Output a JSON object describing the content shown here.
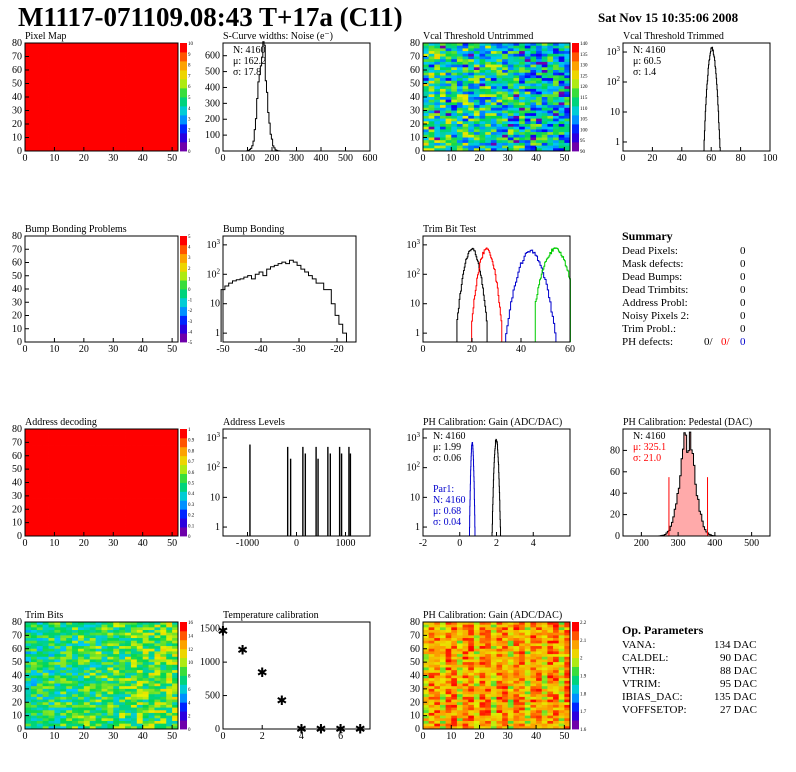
{
  "header": {
    "title": "M1117-071109.08:43 T+17a (C11)",
    "date": "Sat Nov 15 10:35:06 2008"
  },
  "colors": {
    "red": "#ff0000",
    "blue": "#0000cc",
    "green": "#00cc00",
    "pink": "#ffaaaa"
  },
  "chart_data": [
    {
      "id": "pixel-map",
      "type": "heatmap",
      "title": "Pixel Map",
      "xlim": [
        0,
        52
      ],
      "ylim": [
        0,
        80
      ],
      "xticks": [
        0,
        10,
        20,
        30,
        40,
        50
      ],
      "yticks": [
        0,
        10,
        20,
        30,
        40,
        50,
        60,
        70,
        80
      ],
      "fill": "uniform-red",
      "zlim": [
        0,
        10
      ],
      "zticks": [
        0,
        1,
        2,
        3,
        4,
        5,
        6,
        7,
        8,
        9,
        10
      ]
    },
    {
      "id": "scurve-noise",
      "type": "histogram",
      "title": "S-Curve widths: Noise (e⁻)",
      "xlim": [
        0,
        600
      ],
      "ylim": [
        0,
        680
      ],
      "xticks": [
        0,
        100,
        200,
        300,
        400,
        500,
        600
      ],
      "yticks": [
        0,
        100,
        200,
        300,
        400,
        500,
        600
      ],
      "stats": [
        "N: 4160",
        "μ: 162.2",
        "σ: 17.8"
      ],
      "series": [
        {
          "color": "#000000",
          "mean": 162.2,
          "sigma": 17.8,
          "peak": 640,
          "range": [
            100,
            300
          ]
        }
      ]
    },
    {
      "id": "vcal-untrimmed",
      "type": "heatmap",
      "title": "Vcal Threshold Untrimmed",
      "xlim": [
        0,
        52
      ],
      "ylim": [
        0,
        80
      ],
      "xticks": [
        0,
        10,
        20,
        30,
        40,
        50
      ],
      "yticks": [
        0,
        10,
        20,
        30,
        40,
        50,
        60,
        70,
        80
      ],
      "fill": "noise-mixed",
      "zlim": [
        90,
        140
      ],
      "zticks": [
        90,
        95,
        100,
        105,
        110,
        115,
        120,
        125,
        130,
        135,
        140
      ]
    },
    {
      "id": "vcal-trimmed",
      "type": "histogram",
      "title": "Vcal Threshold Trimmed",
      "xlim": [
        0,
        100
      ],
      "log": true,
      "ylim": [
        0.5,
        2000
      ],
      "xticks": [
        0,
        20,
        40,
        60,
        80,
        100
      ],
      "yticks": [
        1,
        10,
        100,
        1000
      ],
      "stats": [
        "N: 4160",
        "μ: 60.5",
        "σ:  1.4"
      ],
      "series": [
        {
          "color": "#000000",
          "mean": 60.5,
          "sigma": 1.4,
          "peak": 1300,
          "range": [
            55,
            66
          ]
        }
      ]
    },
    {
      "id": "bump-problems",
      "type": "heatmap",
      "title": "Bump Bonding Problems",
      "xlim": [
        0,
        52
      ],
      "ylim": [
        0,
        80
      ],
      "xticks": [
        0,
        10,
        20,
        30,
        40,
        50
      ],
      "yticks": [
        0,
        10,
        20,
        30,
        40,
        50,
        60,
        70,
        80
      ],
      "fill": "empty",
      "zlim": [
        -5,
        5
      ],
      "zticks": [
        -5,
        -4,
        -3,
        -2,
        -1,
        0,
        1,
        2,
        3,
        4,
        5
      ]
    },
    {
      "id": "bump-bonding",
      "type": "histogram",
      "title": "Bump Bonding",
      "xlim": [
        -50,
        -15
      ],
      "log": true,
      "ylim": [
        0.5,
        2000
      ],
      "xticks": [
        -50,
        -40,
        -30,
        -20
      ],
      "yticks": [
        1,
        10,
        100,
        1000
      ],
      "series": [
        {
          "color": "#000000",
          "points": [
            [
              -50,
              30
            ],
            [
              -49,
              40
            ],
            [
              -48,
              50
            ],
            [
              -47,
              60
            ],
            [
              -46,
              65
            ],
            [
              -45,
              70
            ],
            [
              -44,
              80
            ],
            [
              -43,
              90
            ],
            [
              -42,
              70
            ],
            [
              -41,
              100
            ],
            [
              -40,
              120
            ],
            [
              -39,
              90
            ],
            [
              -38,
              150
            ],
            [
              -37,
              180
            ],
            [
              -36,
              200
            ],
            [
              -35,
              230
            ],
            [
              -34,
              260
            ],
            [
              -33,
              230
            ],
            [
              -32,
              300
            ],
            [
              -31,
              260
            ],
            [
              -30,
              200
            ],
            [
              -29,
              150
            ],
            [
              -28,
              120
            ],
            [
              -27,
              90
            ],
            [
              -26,
              70
            ],
            [
              -25,
              50
            ],
            [
              -24,
              50
            ],
            [
              -23,
              30
            ],
            [
              -22,
              30
            ],
            [
              -21,
              10
            ],
            [
              -20,
              4
            ],
            [
              -19,
              2
            ],
            [
              -18,
              1
            ]
          ]
        }
      ]
    },
    {
      "id": "trim-bit-test",
      "type": "histogram",
      "title": "Trim Bit Test",
      "xlim": [
        0,
        60
      ],
      "log": true,
      "ylim": [
        0.5,
        2000
      ],
      "xticks": [
        0,
        20,
        40,
        60
      ],
      "yticks": [
        1,
        10,
        100,
        1000
      ],
      "series": [
        {
          "color": "#000000",
          "mean": 20,
          "sigma": 1.8,
          "peak": 700,
          "range": [
            14,
            26
          ]
        },
        {
          "color": "#ff0000",
          "mean": 26,
          "sigma": 1.8,
          "peak": 700,
          "range": [
            20,
            32
          ]
        },
        {
          "color": "#0000cc",
          "mean": 44,
          "sigma": 2.8,
          "peak": 600,
          "range": [
            34,
            54
          ]
        },
        {
          "color": "#00cc00",
          "mean": 54,
          "sigma": 2.8,
          "peak": 700,
          "range": [
            46,
            60
          ]
        }
      ]
    },
    {
      "id": "address-decoding",
      "type": "heatmap",
      "title": "Address decoding",
      "xlim": [
        0,
        52
      ],
      "ylim": [
        0,
        80
      ],
      "xticks": [
        0,
        10,
        20,
        30,
        40,
        50
      ],
      "yticks": [
        0,
        10,
        20,
        30,
        40,
        50,
        60,
        70,
        80
      ],
      "fill": "uniform-red",
      "zlim": [
        0,
        1
      ],
      "zticks": [
        0,
        0.1,
        0.2,
        0.3,
        0.4,
        0.5,
        0.6,
        0.7,
        0.8,
        0.9,
        1
      ]
    },
    {
      "id": "address-levels",
      "type": "histogram",
      "title": "Address Levels",
      "xlim": [
        -1500,
        1500
      ],
      "log": true,
      "ylim": [
        0.5,
        2000
      ],
      "xticks": [
        -1000,
        0,
        1000
      ],
      "yticks": [
        1,
        10,
        100,
        1000
      ],
      "series": [
        {
          "color": "#000000",
          "spikes": [
            [
              -950,
              600
            ],
            [
              -180,
              500
            ],
            [
              -120,
              200
            ],
            [
              130,
              500
            ],
            [
              180,
              300
            ],
            [
              400,
              500
            ],
            [
              440,
              200
            ],
            [
              640,
              500
            ],
            [
              690,
              300
            ],
            [
              880,
              500
            ],
            [
              920,
              300
            ],
            [
              1070,
              500
            ],
            [
              1100,
              300
            ]
          ]
        }
      ]
    },
    {
      "id": "ph-gain",
      "type": "histogram",
      "title": "PH Calibration: Gain (ADC/DAC)",
      "xlim": [
        -2,
        6
      ],
      "log": true,
      "ylim": [
        0.5,
        2000
      ],
      "xticks": [
        -2,
        0,
        2,
        4
      ],
      "yticks": [
        1,
        10,
        100,
        1000
      ],
      "stats": [
        "N: 4160",
        "μ: 1.99",
        "σ: 0.06"
      ],
      "stats2": [
        "Par1:",
        "N: 4160",
        "μ: 0.68",
        "σ: 0.04"
      ],
      "series": [
        {
          "color": "#000000",
          "mean": 1.99,
          "sigma": 0.06,
          "peak": 900,
          "range": [
            1.75,
            2.25
          ]
        },
        {
          "color": "#0000cc",
          "mean": 0.68,
          "sigma": 0.04,
          "peak": 700,
          "range": [
            0.5,
            0.85
          ]
        }
      ]
    },
    {
      "id": "ph-pedestal",
      "type": "histogram",
      "title": "PH Calibration: Pedestal (DAC)",
      "xlim": [
        150,
        550
      ],
      "ylim": [
        0,
        100
      ],
      "xticks": [
        200,
        300,
        400,
        500
      ],
      "yticks": [
        0,
        20,
        40,
        60,
        80
      ],
      "stats": [
        "N: 4160",
        "μ: 325.1",
        "σ: 21.0"
      ],
      "cut_lines": [
        275,
        380
      ],
      "series": [
        {
          "color": "#000000",
          "mean": 325.1,
          "sigma": 21.0,
          "peak": 90,
          "range": [
            250,
            400
          ],
          "hatch": "#ffaaaa"
        }
      ]
    },
    {
      "id": "trim-bits",
      "type": "heatmap",
      "title": "Trim Bits",
      "xlim": [
        0,
        52
      ],
      "ylim": [
        0,
        80
      ],
      "xticks": [
        0,
        10,
        20,
        30,
        40,
        50
      ],
      "yticks": [
        0,
        10,
        20,
        30,
        40,
        50,
        60,
        70,
        80
      ],
      "fill": "trim",
      "zlim": [
        0,
        16
      ],
      "zticks": [
        0,
        2,
        4,
        6,
        8,
        10,
        12,
        14,
        16
      ]
    },
    {
      "id": "temperature-calibration",
      "type": "scatter",
      "title": "Temperature calibration",
      "xlim": [
        0,
        7.5
      ],
      "ylim": [
        0,
        1600
      ],
      "xticks": [
        0,
        2,
        4,
        6
      ],
      "yticks": [
        0,
        500,
        1000,
        1500
      ],
      "series": [
        {
          "color": "#000000",
          "x": [
            0,
            1,
            2,
            3,
            4,
            5,
            6,
            7
          ],
          "y": [
            1470,
            1190,
            850,
            430,
            10,
            10,
            10,
            10
          ]
        }
      ]
    },
    {
      "id": "ph-gain-map",
      "type": "heatmap",
      "title": "PH Calibration: Gain (ADC/DAC)",
      "xlim": [
        0,
        52
      ],
      "ylim": [
        0,
        80
      ],
      "xticks": [
        0,
        10,
        20,
        30,
        40,
        50
      ],
      "yticks": [
        0,
        10,
        20,
        30,
        40,
        50,
        60,
        70,
        80
      ],
      "fill": "gain",
      "zlim": [
        1.6,
        2.2
      ],
      "zticks": [
        1.6,
        1.7,
        1.8,
        1.9,
        2,
        2.1,
        2.2
      ]
    }
  ],
  "summary": {
    "title": "Summary",
    "rows": [
      {
        "label": "Dead Pixels:",
        "value": "0"
      },
      {
        "label": "Mask defects:",
        "value": "0"
      },
      {
        "label": "Dead Bumps:",
        "value": "0"
      },
      {
        "label": "Dead Trimbits:",
        "value": "0"
      },
      {
        "label": "Address Probl:",
        "value": "0"
      },
      {
        "label": "Noisy Pixels 2:",
        "value": "0"
      },
      {
        "label": "Trim Probl.:",
        "value": "0"
      }
    ],
    "ph_label": "PH defects:",
    "ph_values": [
      "0/",
      "0/",
      "0"
    ]
  },
  "op_parameters": {
    "title": "Op. Parameters",
    "rows": [
      {
        "label": "VANA:",
        "value": "134 DAC"
      },
      {
        "label": "CALDEL:",
        "value": "90 DAC"
      },
      {
        "label": "VTHR:",
        "value": "88 DAC"
      },
      {
        "label": "VTRIM:",
        "value": "95 DAC"
      },
      {
        "label": "IBIAS_DAC:",
        "value": "135 DAC"
      },
      {
        "label": "VOFFSETOP:",
        "value": "27 DAC"
      }
    ]
  }
}
